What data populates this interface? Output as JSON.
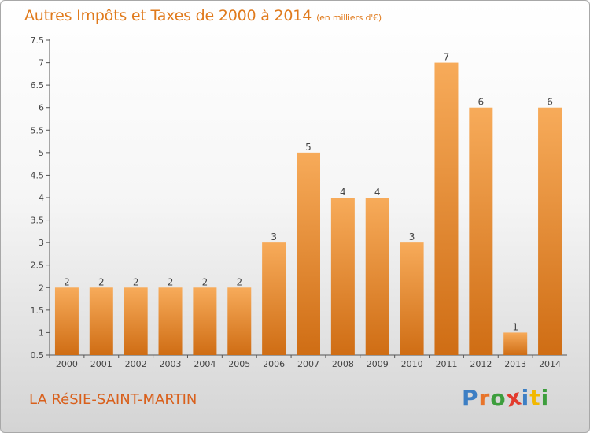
{
  "title": "Autres Impôts et Taxes de 2000 à 2014",
  "unit_note": "(en milliers d'€)",
  "commune_name": "LA RéSIE-SAINT-MARTIN",
  "logo": {
    "text": "Proxiti",
    "letter_colors": [
      "#3d7fc4",
      "#e8742a",
      "#3d9e3d",
      "#e23b2e",
      "#3d7fc4",
      "#f2b800",
      "#3d9e3d"
    ]
  },
  "colors": {
    "bar": "#f0922f",
    "bar_light": "#f7ab5a",
    "bar_dark": "#cf6d14",
    "title": "#e07a1c"
  },
  "chart_data": {
    "type": "bar",
    "title": "Autres Impôts et Taxes de 2000 à 2014",
    "xlabel": "",
    "ylabel": "",
    "categories": [
      "2000",
      "2001",
      "2002",
      "2003",
      "2004",
      "2005",
      "2006",
      "2007",
      "2008",
      "2009",
      "2010",
      "2011",
      "2012",
      "2013",
      "2014"
    ],
    "values": [
      2,
      2,
      2,
      2,
      2,
      2,
      3,
      5,
      4,
      4,
      3,
      7,
      6,
      1,
      6
    ],
    "data_labels": [
      "2",
      "2",
      "2",
      "2",
      "2",
      "2",
      "3",
      "5",
      "4",
      "4",
      "3",
      "7",
      "6",
      "1",
      "6"
    ],
    "ylim": [
      0.5,
      7.5
    ],
    "yticks": [
      "0.5",
      "1",
      "1.5",
      "2",
      "2.5",
      "3",
      "3.5",
      "4",
      "4.5",
      "5",
      "5.5",
      "6",
      "6.5",
      "7",
      "7.5"
    ],
    "grid": false,
    "legend": "none"
  }
}
